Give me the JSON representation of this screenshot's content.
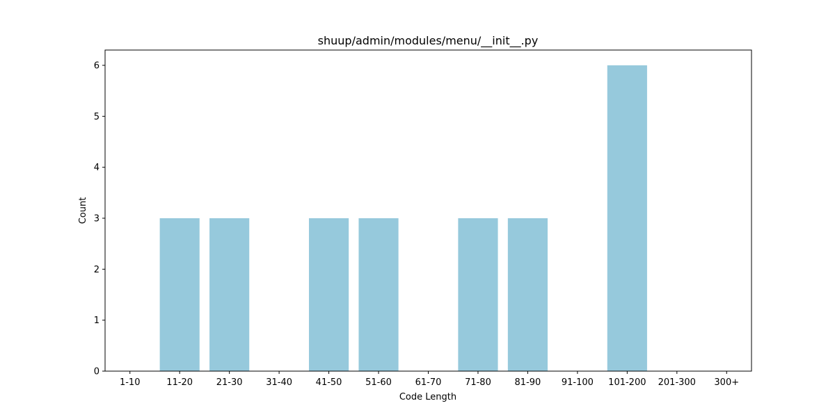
{
  "chart_data": {
    "type": "bar",
    "title": "shuup/admin/modules/menu/__init__.py",
    "xlabel": "Code Length",
    "ylabel": "Count",
    "categories": [
      "1-10",
      "11-20",
      "21-30",
      "31-40",
      "41-50",
      "51-60",
      "61-70",
      "71-80",
      "81-90",
      "91-100",
      "101-200",
      "201-300",
      "300+"
    ],
    "values": [
      0,
      3,
      3,
      0,
      3,
      3,
      0,
      3,
      3,
      0,
      6,
      0,
      0
    ],
    "ylim": [
      0,
      6.3
    ],
    "yticks": [
      0,
      1,
      2,
      3,
      4,
      5,
      6
    ],
    "bar_color": "#96c9dc",
    "grid": false,
    "legend": "none"
  }
}
